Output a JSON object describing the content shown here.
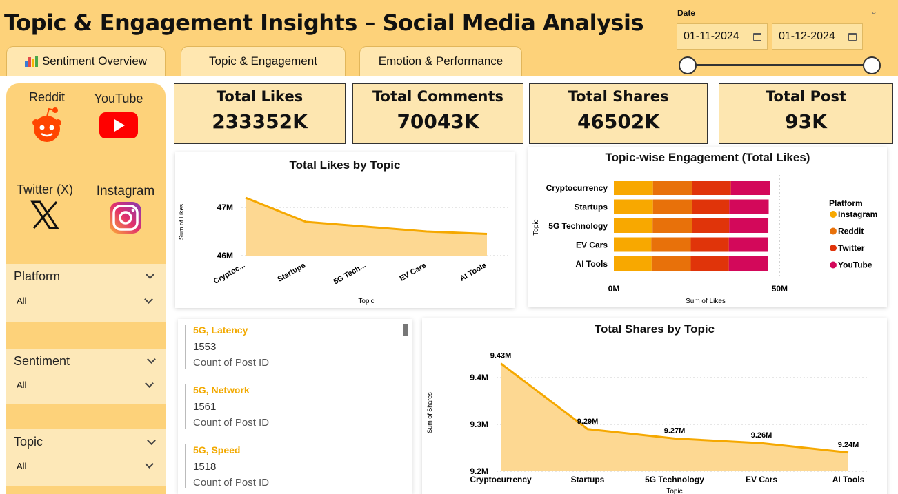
{
  "header": {
    "title": "Topic & Engagement Insights – Social Media Analysis",
    "tabs": [
      "Sentiment Overview",
      "Topic & Engagement",
      "Emotion & Performance"
    ],
    "date_label": "Date",
    "date_start": "01-11-2024",
    "date_end": "01-12-2024"
  },
  "sidebar": {
    "platforms": [
      "Reddit",
      "YouTube",
      "Twitter (X)",
      "Instagram"
    ],
    "filters": [
      {
        "label": "Platform",
        "value": "All"
      },
      {
        "label": "Sentiment",
        "value": "All"
      },
      {
        "label": "Topic",
        "value": "All"
      }
    ]
  },
  "kpis": [
    {
      "label": "Total Likes",
      "value": "233352K"
    },
    {
      "label": "Total Comments",
      "value": "70043K"
    },
    {
      "label": "Total Shares",
      "value": "46502K"
    },
    {
      "label": "Total Post",
      "value": "93K"
    }
  ],
  "colors": {
    "accent": "#f5a800",
    "area": "#fdd892",
    "instagram": "#f8a800",
    "reddit": "#e8710a",
    "twitter": "#e0340a",
    "youtube": "#d3085a"
  },
  "list": [
    {
      "title": "5G, Latency",
      "value": "1553",
      "sub": "Count of Post ID"
    },
    {
      "title": "5G, Network",
      "value": "1561",
      "sub": "Count of Post ID"
    },
    {
      "title": "5G, Speed",
      "value": "1518",
      "sub": "Count of Post ID"
    }
  ],
  "chart_data": [
    {
      "type": "area",
      "title": "Total Likes by Topic",
      "xlabel": "Topic",
      "ylabel": "Sum of Likes",
      "categories": [
        "Cryptoc...",
        "Startups",
        "5G Tech...",
        "EV Cars",
        "AI Tools"
      ],
      "values": [
        47.2,
        46.7,
        46.6,
        46.5,
        46.45
      ],
      "ylim": [
        46,
        47.4
      ],
      "yticks": [
        "47M",
        "46M"
      ],
      "ytick_values": [
        47,
        46
      ]
    },
    {
      "type": "bar",
      "orientation": "horizontal",
      "stacked": true,
      "title": "Topic-wise Engagement (Total Likes)",
      "xlabel": "Sum of Likes",
      "ylabel": "Topic",
      "categories": [
        "Cryptocurrency",
        "Startups",
        "5G Technology",
        "EV Cars",
        "AI Tools"
      ],
      "legend_title": "Platform",
      "legend_position": "right",
      "series": [
        {
          "name": "Instagram",
          "values": [
            11.8,
            11.8,
            11.7,
            11.3,
            11.4
          ]
        },
        {
          "name": "Reddit",
          "values": [
            11.7,
            11.7,
            11.9,
            11.9,
            11.8
          ]
        },
        {
          "name": "Twitter",
          "values": [
            11.8,
            11.3,
            11.2,
            11.5,
            11.5
          ]
        },
        {
          "name": "YouTube",
          "values": [
            11.9,
            11.9,
            11.8,
            11.8,
            11.7
          ]
        }
      ],
      "xlim": [
        0,
        52
      ],
      "xticks": [
        "0M",
        "50M"
      ],
      "xtick_values": [
        0,
        50
      ]
    },
    {
      "type": "area",
      "title": "Total Shares by Topic",
      "xlabel": "Topic",
      "ylabel": "Sum of Shares",
      "categories": [
        "Cryptocurrency",
        "Startups",
        "5G Technology",
        "EV Cars",
        "AI Tools"
      ],
      "values": [
        9.43,
        9.29,
        9.27,
        9.26,
        9.24
      ],
      "data_labels": [
        "9.43M",
        "9.29M",
        "9.27M",
        "9.26M",
        "9.24M"
      ],
      "ylim": [
        9.2,
        9.45
      ],
      "yticks": [
        "9.4M",
        "9.3M",
        "9.2M"
      ],
      "ytick_values": [
        9.4,
        9.3,
        9.2
      ]
    }
  ]
}
